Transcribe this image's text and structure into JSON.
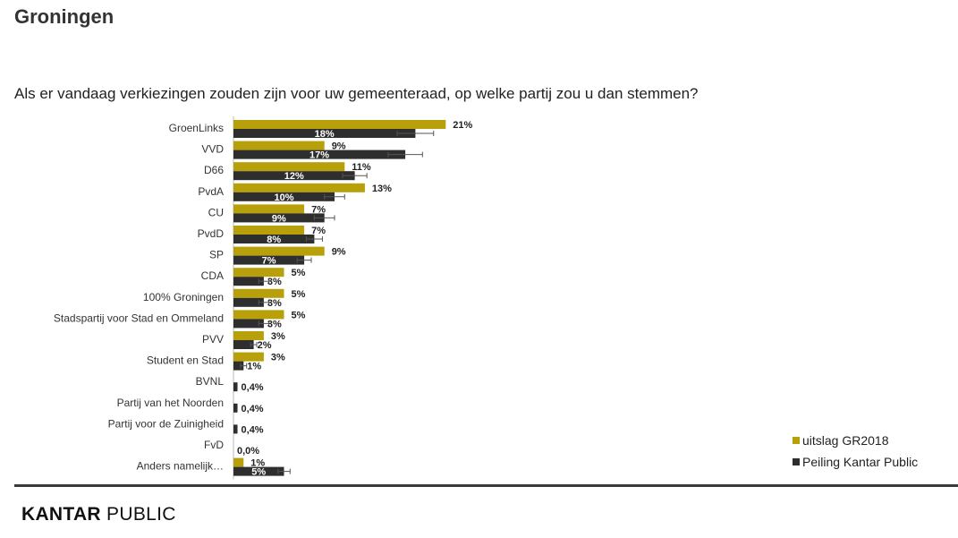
{
  "page": {
    "title": "Groningen",
    "question": "Als er vandaag verkiezingen zouden zijn voor uw gemeenteraad, op welke partij zou u dan stemmen?",
    "logo_brand": "KANTAR",
    "logo_sub": "PUBLIC"
  },
  "colors": {
    "series1": "#b8a00a",
    "series2": "#2e2e2e",
    "errorbar": "#555555",
    "divider": "#3a3a3a"
  },
  "chart_data": {
    "type": "bar",
    "orientation": "horizontal",
    "categories": [
      "GroenLinks",
      "VVD",
      "D66",
      "PvdA",
      "CU",
      "PvdD",
      "SP",
      "CDA",
      "100% Groningen",
      "Stadspartij voor Stad en Ommeland",
      "PVV",
      "Student en Stad",
      "BVNL",
      "Partij van het Noorden",
      "Partij voor de Zuinigheid",
      "FvD",
      "Anders namelijk…"
    ],
    "series": [
      {
        "name": "uitslag GR2018",
        "values": [
          21,
          9,
          11,
          13,
          7,
          7,
          9,
          5,
          5,
          5,
          3,
          3,
          null,
          null,
          null,
          null,
          1
        ],
        "labels": [
          "21%",
          "9%",
          "11%",
          "13%",
          "7%",
          "7%",
          "9%",
          "5%",
          "5%",
          "5%",
          "3%",
          "3%",
          "",
          "",
          "",
          "",
          "1%"
        ]
      },
      {
        "name": "Peiling Kantar Public",
        "values": [
          18,
          17,
          12,
          10,
          9,
          8,
          7,
          3,
          3,
          3,
          2,
          1,
          0.4,
          0.4,
          0.4,
          0.0,
          5
        ],
        "labels": [
          "18%",
          "17%",
          "12%",
          "10%",
          "9%",
          "8%",
          "7%",
          "3%",
          "3%",
          "3%",
          "2%",
          "1%",
          "0,4%",
          "0,4%",
          "0,4%",
          "0,0%",
          "5%"
        ],
        "error": [
          1.8,
          1.7,
          1.2,
          1.0,
          1.0,
          0.8,
          0.7,
          0.5,
          0.5,
          0.5,
          0.3,
          0.3,
          0,
          0,
          0,
          0,
          0.6
        ]
      }
    ],
    "legend_position": "bottom-right",
    "grid": false,
    "unit": "%"
  }
}
